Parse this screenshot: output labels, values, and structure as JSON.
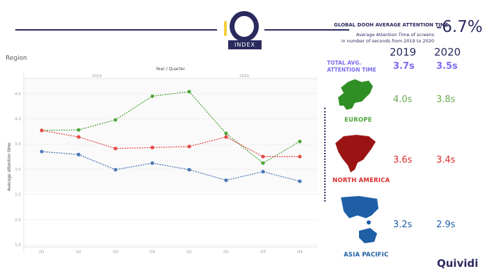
{
  "logo": {
    "text": "iQ",
    "badge": "INDEX"
  },
  "header": {
    "title": "GLOBAL DOOH AVERAGE ATTENTION TIME",
    "change": "-6.7%",
    "subtitle_line1": "Average Attention Time of screens",
    "subtitle_line2": "in number of seconds from 2019 to 2020"
  },
  "panel_label": "Region",
  "summary": {
    "years": [
      "2019",
      "2020"
    ],
    "total_label_line1": "TOTAL AVG.",
    "total_label_line2": "ATTENTION TIME",
    "total": [
      "3.7s",
      "3.5s"
    ],
    "regions": [
      {
        "name": "EUROPE",
        "v2019": "4.0s",
        "v2020": "3.8s"
      },
      {
        "name": "NORTH AMERICA",
        "v2019": "3.6s",
        "v2020": "3.4s"
      },
      {
        "name": "ASIA PACIFIC",
        "v2019": "3.2s",
        "v2020": "2.9s"
      }
    ]
  },
  "brand": "Quividi",
  "colors": {
    "navy": "#2b2a5e",
    "accent": "#7b6cf0",
    "europe": "#4ea53a",
    "north_america": "#d92b2b",
    "asia_pacific": "#1f5fa6"
  },
  "chart_data": {
    "type": "line",
    "title": "Year / Quarter",
    "xlabel": "Year / Quarter",
    "ylabel": "Average attention time",
    "year_labels": [
      "2019",
      "2020"
    ],
    "categories": [
      "Q1",
      "Q2",
      "Q3",
      "Q4",
      "Q1",
      "Q2",
      "Q3",
      "Q4"
    ],
    "ylim": [
      1.5,
      4.8
    ],
    "yticks": [
      "1.5",
      "2.0",
      "2.5",
      "3.0",
      "3.5",
      "4.0",
      "4.5"
    ],
    "series": [
      {
        "name": "Europe",
        "color": "#4ea53a",
        "values": [
          3.77,
          3.78,
          3.98,
          4.45,
          4.54,
          3.71,
          3.12,
          3.55
        ]
      },
      {
        "name": "North America",
        "color": "#e84848",
        "values": [
          3.77,
          3.64,
          3.41,
          3.43,
          3.45,
          3.64,
          3.25,
          3.25
        ]
      },
      {
        "name": "Asia Pacific",
        "color": "#4a78b4",
        "values": [
          3.35,
          3.29,
          2.99,
          3.12,
          2.99,
          2.78,
          2.95,
          2.76
        ]
      }
    ]
  }
}
